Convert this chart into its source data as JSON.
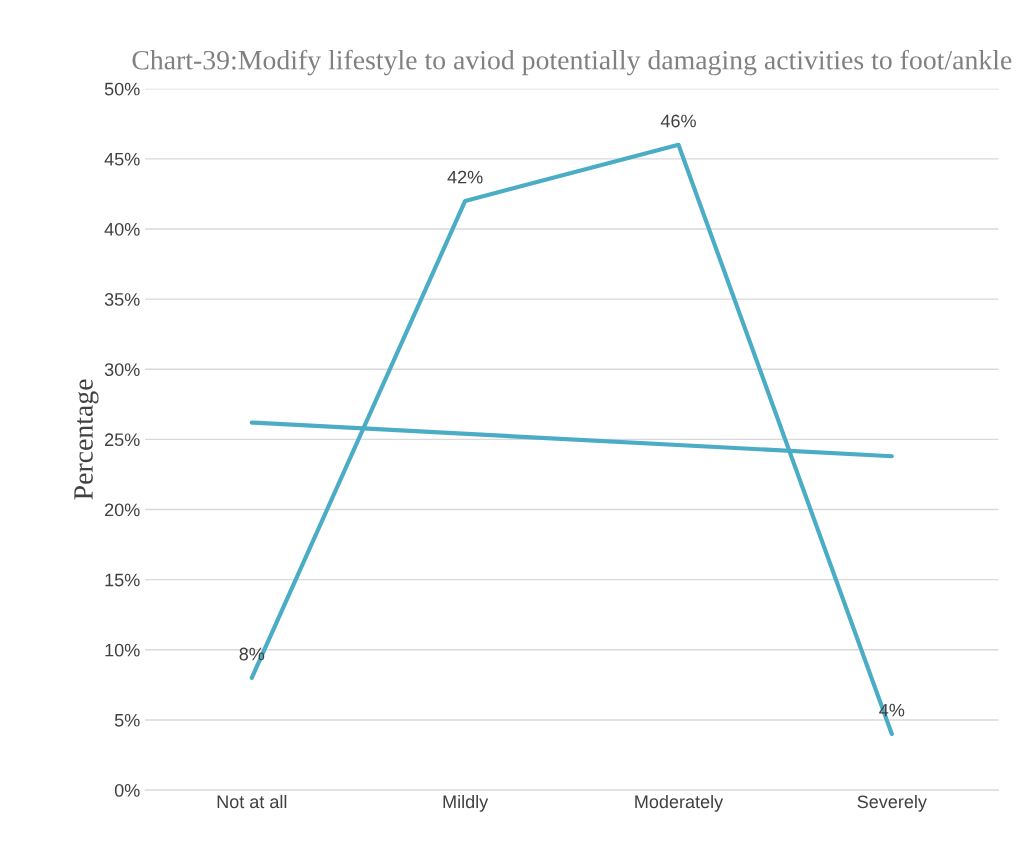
{
  "chart_data": {
    "type": "line",
    "title": "Chart-39:Modify lifestyle to aviod potentially damaging activities to foot/ankle",
    "ylabel": "Percentage",
    "categories": [
      "Not at all",
      "Mildly",
      "Moderately",
      "Severely"
    ],
    "series": [
      {
        "color": "#4bacc6",
        "values": [
          8,
          42,
          46,
          4
        ],
        "value_labels": [
          "8%",
          "42%",
          "46%",
          "4%"
        ]
      },
      {
        "type": "line",
        "color": "#4bacc6",
        "x": [
          "Not at all",
          "Severely"
        ],
        "values": [
          26.2,
          23.8
        ]
      }
    ],
    "ylim": [
      0,
      50
    ],
    "yticks": [
      {
        "value": 0,
        "label": "0%"
      },
      {
        "value": 5,
        "label": "5%"
      },
      {
        "value": 10,
        "label": "10%"
      },
      {
        "value": 15,
        "label": "15%"
      },
      {
        "value": 20,
        "label": "20%"
      },
      {
        "value": 25,
        "label": "25%"
      },
      {
        "value": 30,
        "label": "30%"
      },
      {
        "value": 35,
        "label": "35%"
      },
      {
        "value": 40,
        "label": "40%"
      },
      {
        "value": 45,
        "label": "45%"
      },
      {
        "value": 50,
        "label": "50%"
      }
    ],
    "grid": "y",
    "marker": "none",
    "line_style": "solid"
  }
}
